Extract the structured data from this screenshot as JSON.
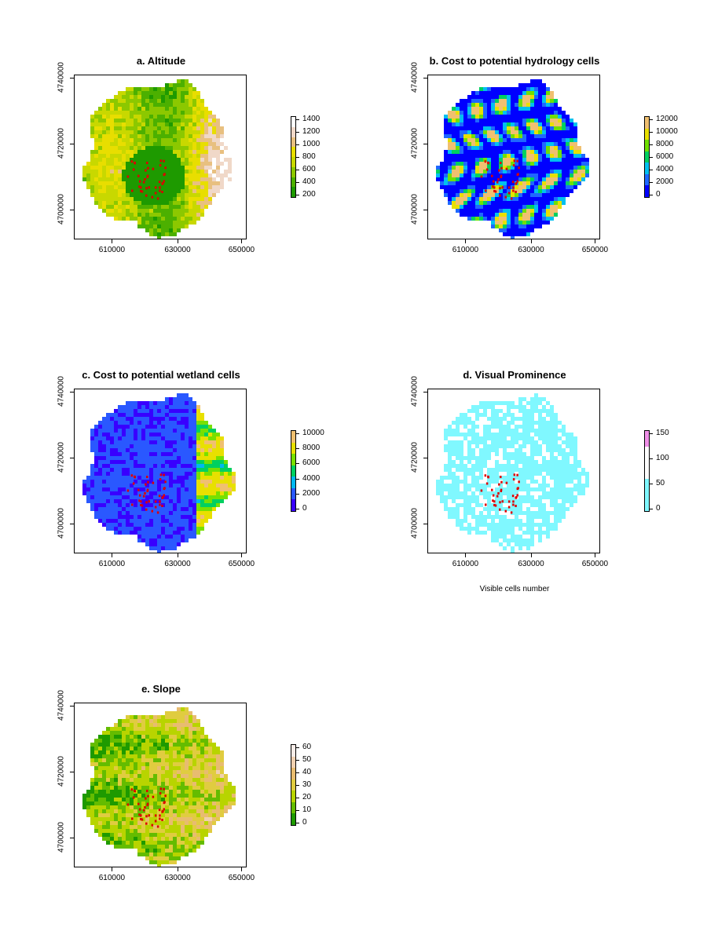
{
  "chart_data": [
    {
      "type": "heatmap",
      "title": "a. Altitude",
      "x_ticks": [
        "610000",
        "630000",
        "650000"
      ],
      "y_ticks": [
        "4700000",
        "4720000",
        "4740000"
      ],
      "legend_labels": [
        "200",
        "400",
        "600",
        "800",
        "1000",
        "1200",
        "1400"
      ],
      "legend_colors": [
        "#1e9a00",
        "#4cb000",
        "#8cc800",
        "#c8d800",
        "#e8de00",
        "#e8c080",
        "#f0d8c8",
        "#ffffff"
      ],
      "xlabel": "",
      "ylabel": "",
      "points": "sites"
    },
    {
      "type": "heatmap",
      "title": "b. Cost to potential hydrology cells",
      "x_ticks": [
        "610000",
        "630000",
        "650000"
      ],
      "y_ticks": [
        "4700000",
        "4720000",
        "4740000"
      ],
      "legend_labels": [
        "0",
        "2000",
        "4000",
        "6000",
        "8000",
        "10000",
        "12000"
      ],
      "legend_colors": [
        "#0000ff",
        "#1e68ff",
        "#00c0f0",
        "#00d060",
        "#70e000",
        "#e8e000",
        "#f0c070"
      ],
      "xlabel": "",
      "ylabel": ""
    },
    {
      "type": "heatmap",
      "title": "c. Cost to potential wetland cells",
      "x_ticks": [
        "610000",
        "630000",
        "650000"
      ],
      "y_ticks": [
        "4700000",
        "4720000",
        "4740000"
      ],
      "legend_labels": [
        "0",
        "2000",
        "4000",
        "6000",
        "8000",
        "10000"
      ],
      "legend_colors": [
        "#3800ff",
        "#2a58ff",
        "#00b8f0",
        "#00d060",
        "#78e000",
        "#e8e000",
        "#f0c070"
      ],
      "xlabel": "",
      "ylabel": ""
    },
    {
      "type": "heatmap",
      "title": "d. Visual Prominence",
      "x_ticks": [
        "610000",
        "630000",
        "650000"
      ],
      "y_ticks": [
        "4700000",
        "4720000",
        "4740000"
      ],
      "legend_labels": [
        "0",
        "50",
        "100",
        "150"
      ],
      "legend_colors": [
        "#80f8ff",
        "#80f8ff",
        "#ffffff",
        "#ffffff",
        "#f090e8"
      ],
      "xlabel": "Visible cells number",
      "ylabel": ""
    },
    {
      "type": "heatmap",
      "title": "e. Slope",
      "x_ticks": [
        "610000",
        "630000",
        "650000"
      ],
      "y_ticks": [
        "4700000",
        "4720000",
        "4740000"
      ],
      "legend_labels": [
        "0",
        "10",
        "20",
        "30",
        "40",
        "50",
        "60"
      ],
      "legend_colors": [
        "#1e9a00",
        "#64bc00",
        "#b8d400",
        "#e0cc40",
        "#e8bc70",
        "#f0d0b0",
        "#f8ece8"
      ],
      "xlabel": "",
      "ylabel": ""
    }
  ],
  "colors": {
    "site_points": "#dd0000",
    "frame": "#000000"
  }
}
